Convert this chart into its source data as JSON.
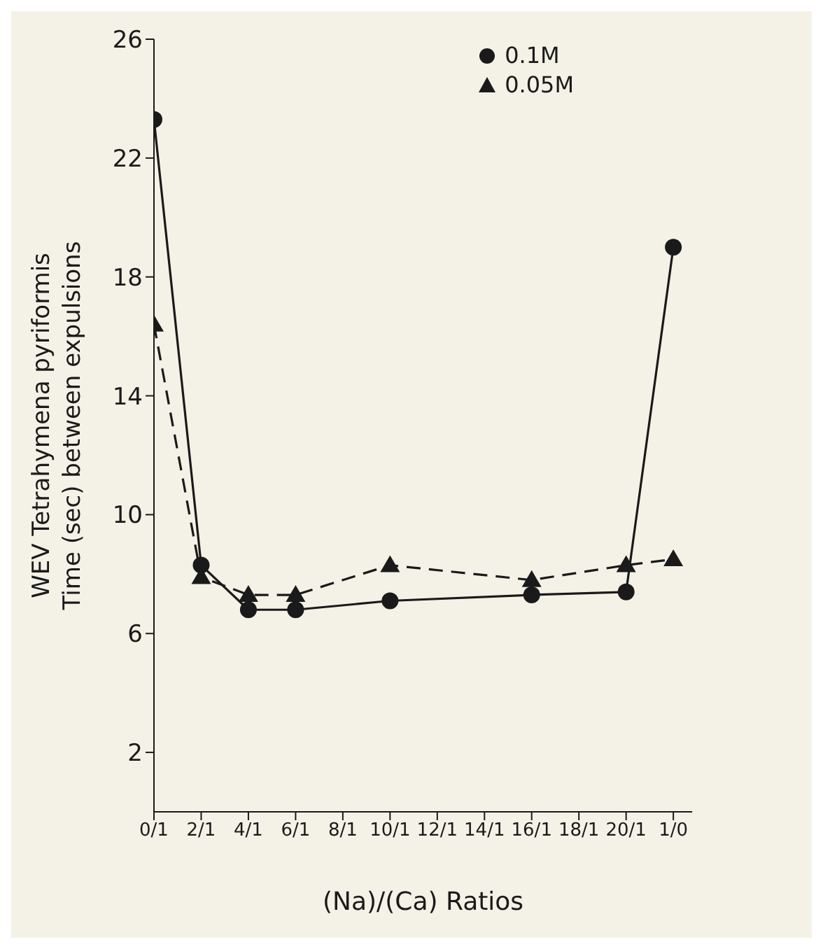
{
  "chart_data": {
    "type": "line",
    "ylabel": "WEV Tetrahymena pyriformis\nTime (sec) between expulsions",
    "xlabel": "(Na)/(Ca) Ratios",
    "categories": [
      "0/1",
      "2/1",
      "4/1",
      "6/1",
      "8/1",
      "10/1",
      "12/1",
      "14/1",
      "16/1",
      "18/1",
      "20/1",
      "1/0"
    ],
    "series": [
      {
        "name": "0.1M",
        "color": "#1a1a1a",
        "marker": "circle",
        "line_style": "solid",
        "values": [
          23.3,
          8.3,
          6.8,
          6.8,
          null,
          7.1,
          null,
          null,
          7.3,
          null,
          7.4,
          19.0
        ]
      },
      {
        "name": "0.05M",
        "color": "#1a1a1a",
        "marker": "triangle",
        "line_style": "dashed",
        "values": [
          16.4,
          7.9,
          7.3,
          7.3,
          null,
          8.3,
          null,
          null,
          7.8,
          null,
          8.3,
          8.5
        ]
      }
    ],
    "ylim": [
      0,
      26
    ],
    "yticks": [
      2,
      6,
      10,
      14,
      18,
      22,
      26
    ],
    "grid": false,
    "legend": "top right"
  }
}
